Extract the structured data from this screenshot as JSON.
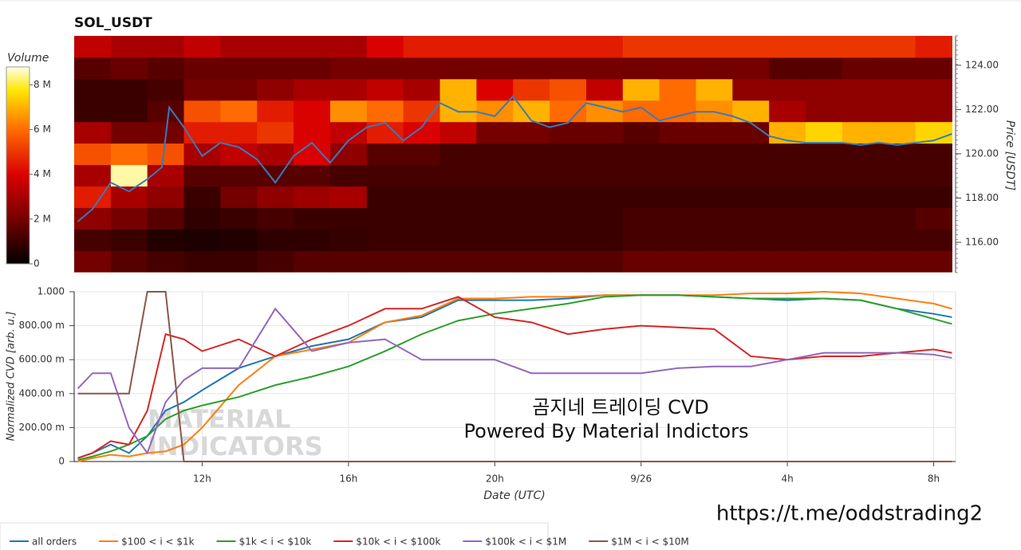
{
  "chart_data": [
    {
      "type": "heatmap",
      "title": "SOL_USDT",
      "xlim": [
        8.5,
        32.6
      ],
      "x_bins": [
        8.5,
        9.5,
        10.5,
        11.5,
        12.5,
        13.5,
        14.5,
        15.5,
        16.5,
        17.5,
        18.5,
        19.5,
        20.5,
        21.5,
        22.5,
        23.5,
        24.5,
        25.5,
        26.5,
        27.5,
        28.5,
        29.5,
        30.5,
        31.5,
        32.5
      ],
      "y_bins": [
        114.66,
        115.63,
        116.6,
        117.57,
        118.54,
        119.51,
        120.48,
        121.45,
        122.42,
        123.39,
        124.36,
        125.33
      ],
      "z": [
        [
          2000000,
          1500000,
          1200000,
          1000000,
          1000000,
          1200000,
          1500000,
          1500000,
          1500000,
          1500000,
          1500000,
          1500000,
          1500000,
          1500000,
          1500000,
          1800000,
          1800000,
          1800000,
          1800000,
          1800000,
          1800000,
          1800000,
          1800000,
          1800000
        ],
        [
          1200000,
          1000000,
          600000,
          500000,
          600000,
          800000,
          800000,
          900000,
          1000000,
          1000000,
          1000000,
          1000000,
          1000000,
          1000000,
          1000000,
          1200000,
          1200000,
          1200000,
          1200000,
          1200000,
          1200000,
          1200000,
          1200000,
          1200000
        ],
        [
          2500000,
          2000000,
          1500000,
          800000,
          1000000,
          1200000,
          1000000,
          1000000,
          1000000,
          1000000,
          1000000,
          1000000,
          1000000,
          1000000,
          1000000,
          1200000,
          1200000,
          1200000,
          1200000,
          1200000,
          1200000,
          1200000,
          1200000,
          1500000
        ],
        [
          4500000,
          3000000,
          2500000,
          1000000,
          2000000,
          2500000,
          2800000,
          3000000,
          1000000,
          1000000,
          1000000,
          1000000,
          1000000,
          1000000,
          1000000,
          1000000,
          1000000,
          1000000,
          1000000,
          1000000,
          1000000,
          1000000,
          1000000,
          1000000
        ],
        [
          3000000,
          8500000,
          3000000,
          1500000,
          1500000,
          1500000,
          1500000,
          1200000,
          1200000,
          1200000,
          1200000,
          1200000,
          1200000,
          1200000,
          1200000,
          1200000,
          1200000,
          1200000,
          1200000,
          1200000,
          1200000,
          1200000,
          1200000,
          1200000
        ],
        [
          5500000,
          6000000,
          5500000,
          3000000,
          3500000,
          3000000,
          4000000,
          2500000,
          1500000,
          1500000,
          1200000,
          1200000,
          1200000,
          1200000,
          1200000,
          1200000,
          1200000,
          1200000,
          1200000,
          1200000,
          1200000,
          1200000,
          1200000,
          1200000
        ],
        [
          3000000,
          2000000,
          2000000,
          4500000,
          4500000,
          5000000,
          4000000,
          3500000,
          4500000,
          4000000,
          3500000,
          2000000,
          2000000,
          1800000,
          1800000,
          1500000,
          1800000,
          1800000,
          1800000,
          7000000,
          7500000,
          7000000,
          7000000,
          7500000
        ],
        [
          1000000,
          1000000,
          1500000,
          5500000,
          6000000,
          4500000,
          4000000,
          6500000,
          6000000,
          5000000,
          7000000,
          6500000,
          7000000,
          6000000,
          6500000,
          6000000,
          6000000,
          6500000,
          7000000,
          3000000,
          2500000,
          2500000,
          2500000,
          2500000
        ],
        [
          1000000,
          1000000,
          1200000,
          2000000,
          2000000,
          2500000,
          3000000,
          3000000,
          3500000,
          3000000,
          7000000,
          4000000,
          5000000,
          5500000,
          3500000,
          7000000,
          6000000,
          7000000,
          2500000,
          2500000,
          2500000,
          2500000,
          2500000,
          2500000
        ],
        [
          1500000,
          1800000,
          1500000,
          1800000,
          1800000,
          1800000,
          1800000,
          2000000,
          2000000,
          2000000,
          2000000,
          2000000,
          2000000,
          2000000,
          2000000,
          2000000,
          2000000,
          2000000,
          2000000,
          1500000,
          1500000,
          1800000,
          1800000,
          1800000
        ],
        [
          3500000,
          3000000,
          3000000,
          3500000,
          3000000,
          3000000,
          3000000,
          3000000,
          4000000,
          4500000,
          4500000,
          4500000,
          4500000,
          4500000,
          4500000,
          5000000,
          5000000,
          5000000,
          5000000,
          5000000,
          5000000,
          5000000,
          5000000,
          4500000
        ]
      ],
      "colorbar": {
        "label": "Volume",
        "lim": [
          0,
          8800000
        ],
        "ticks": [
          0,
          {
            "value": 2000000,
            "label": "2 M"
          },
          {
            "value": 4000000,
            "label": "4 M"
          },
          {
            "value": 6000000,
            "label": "6 M"
          },
          {
            "value": 8000000,
            "label": "8 M"
          }
        ]
      },
      "ylim": [
        114.63,
        125.33
      ],
      "y_label": "Price [USDT]",
      "yticks": [
        {
          "value": 116,
          "label": "116.00"
        },
        {
          "value": 118,
          "label": "118.00"
        },
        {
          "value": 120,
          "label": "120.00"
        },
        {
          "value": 122,
          "label": "122.00"
        },
        {
          "value": 124,
          "label": "124.00"
        }
      ],
      "line": {
        "color": "#3a7ab8",
        "x": [
          8.6,
          9,
          9.5,
          10,
          10.5,
          10.9,
          11.1,
          11.5,
          12,
          12.5,
          13,
          13.5,
          14,
          14.5,
          15,
          15.5,
          16,
          16.5,
          17,
          17.5,
          18,
          18.5,
          19,
          19.5,
          20,
          20.5,
          21,
          21.5,
          22,
          22.5,
          23,
          23.5,
          24,
          24.5,
          25,
          25.5,
          26,
          26.5,
          27,
          27.5,
          28,
          28.5,
          29,
          29.5,
          30,
          30.5,
          31,
          31.5,
          32,
          32.5
        ],
        "values": [
          116.94,
          117.5,
          118.7,
          118.3,
          118.85,
          119.4,
          122.1,
          121.2,
          119.9,
          120.5,
          120.3,
          119.75,
          118.7,
          119.9,
          120.5,
          119.6,
          120.6,
          121.2,
          121.4,
          120.6,
          121.2,
          122.3,
          121.9,
          121.9,
          121.7,
          122.6,
          121.5,
          121.2,
          121.4,
          122.3,
          122.1,
          121.9,
          122.1,
          121.5,
          121.7,
          121.9,
          121.9,
          121.7,
          121.4,
          120.8,
          120.6,
          120.5,
          120.5,
          120.5,
          120.4,
          120.5,
          120.4,
          120.5,
          120.6,
          120.9
        ]
      }
    },
    {
      "type": "line",
      "x_label": "Date (UTC)",
      "y_label": "Normalized CVD [arb. u.]",
      "xlim": [
        8.5,
        32.6
      ],
      "xticks": [
        {
          "value": 12,
          "label": "12h"
        },
        {
          "value": 16,
          "label": "16h"
        },
        {
          "value": 20,
          "label": "20h"
        },
        {
          "value": 24,
          "label": "9/26"
        },
        {
          "value": 28,
          "label": "4h"
        },
        {
          "value": 32,
          "label": "8h"
        }
      ],
      "ylim": [
        0,
        1
      ],
      "yticks": [
        0,
        {
          "value": 0.2,
          "label": "200.00 m"
        },
        {
          "value": 0.4,
          "label": "400.00 m"
        },
        {
          "value": 0.6,
          "label": "600.00 m"
        },
        {
          "value": 0.8,
          "label": "800.00 m"
        },
        {
          "value": 1,
          "label": "1.000"
        }
      ],
      "grid": true,
      "x": [
        8.6,
        9,
        9.5,
        10,
        10.5,
        11,
        11.5,
        12,
        13,
        14,
        15,
        16,
        17,
        18,
        19,
        20,
        21,
        22,
        23,
        24,
        25,
        26,
        27,
        28,
        29,
        30,
        31,
        32,
        32.5
      ],
      "series": [
        {
          "name": "all orders",
          "color": "#1f77b4",
          "values": [
            0.02,
            0.05,
            0.1,
            0.05,
            0.15,
            0.3,
            0.35,
            0.42,
            0.55,
            0.62,
            0.68,
            0.72,
            0.82,
            0.85,
            0.95,
            0.95,
            0.95,
            0.96,
            0.98,
            0.98,
            0.98,
            0.97,
            0.96,
            0.95,
            0.96,
            0.95,
            0.9,
            0.87,
            0.85
          ]
        },
        {
          "name": "$100 < i < $1k",
          "color": "#ff7f0e",
          "values": [
            0,
            0.02,
            0.04,
            0.03,
            0.05,
            0.06,
            0.1,
            0.2,
            0.45,
            0.62,
            0.66,
            0.7,
            0.82,
            0.86,
            0.96,
            0.96,
            0.97,
            0.97,
            0.98,
            0.98,
            0.98,
            0.98,
            0.99,
            0.99,
            1,
            0.99,
            0.96,
            0.93,
            0.9
          ]
        },
        {
          "name": "$1k < i < $10k",
          "color": "#2ca02c",
          "values": [
            0.01,
            0.03,
            0.06,
            0.1,
            0.15,
            0.25,
            0.3,
            0.33,
            0.38,
            0.45,
            0.5,
            0.56,
            0.65,
            0.75,
            0.83,
            0.87,
            0.9,
            0.93,
            0.97,
            0.98,
            0.98,
            0.97,
            0.96,
            0.96,
            0.96,
            0.95,
            0.9,
            0.84,
            0.81
          ]
        },
        {
          "name": "$10k < i < $100k",
          "color": "#d62728",
          "values": [
            0.02,
            0.05,
            0.12,
            0.1,
            0.3,
            0.75,
            0.72,
            0.65,
            0.72,
            0.62,
            0.72,
            0.8,
            0.9,
            0.9,
            0.97,
            0.85,
            0.82,
            0.75,
            0.78,
            0.8,
            0.79,
            0.78,
            0.62,
            0.6,
            0.62,
            0.62,
            0.64,
            0.66,
            0.64
          ]
        },
        {
          "name": "$100k < i < $1M",
          "color": "#9467bd",
          "values": [
            0.43,
            0.52,
            0.52,
            0.2,
            0.05,
            0.35,
            0.48,
            0.55,
            0.55,
            0.9,
            0.65,
            0.7,
            0.72,
            0.6,
            0.6,
            0.6,
            0.52,
            0.52,
            0.52,
            0.52,
            0.55,
            0.56,
            0.56,
            0.6,
            0.64,
            0.64,
            0.64,
            0.63,
            0.61
          ]
        },
        {
          "name": "$1M < i < $10M",
          "color": "#8c564b",
          "values": [
            0.4,
            0.4,
            0.4,
            0.4,
            1,
            1,
            0,
            0,
            0,
            0,
            0,
            0,
            0,
            0,
            0,
            0,
            0,
            0,
            0,
            0,
            0,
            0,
            0,
            0,
            0,
            0,
            0,
            0,
            0
          ]
        }
      ],
      "annotations": [
        "곰지네 트레이딩 CVD",
        "Powered By Material Indictors"
      ],
      "watermark": [
        "MATERIAL",
        "INDICATORS"
      ]
    }
  ],
  "footer": {
    "link": "https://t.me/oddstrading2"
  }
}
